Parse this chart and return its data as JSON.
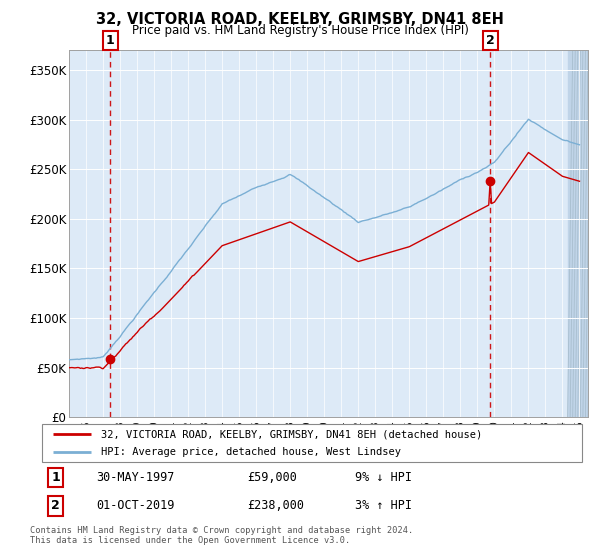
{
  "title": "32, VICTORIA ROAD, KEELBY, GRIMSBY, DN41 8EH",
  "subtitle": "Price paid vs. HM Land Registry's House Price Index (HPI)",
  "ylabel_vals": [
    "£0",
    "£50K",
    "£100K",
    "£150K",
    "£200K",
    "£250K",
    "£300K",
    "£350K"
  ],
  "yticks": [
    0,
    50000,
    100000,
    150000,
    200000,
    250000,
    300000,
    350000
  ],
  "ylim": [
    0,
    370000
  ],
  "xlim_start": 1995.0,
  "xlim_end": 2025.5,
  "purchase1_x": 1997.41,
  "purchase1_y": 59000,
  "purchase1_label": "1",
  "purchase1_date": "30-MAY-1997",
  "purchase1_price": "£59,000",
  "purchase1_hpi": "9% ↓ HPI",
  "purchase2_x": 2019.75,
  "purchase2_y": 238000,
  "purchase2_label": "2",
  "purchase2_date": "01-OCT-2019",
  "purchase2_price": "£238,000",
  "purchase2_hpi": "3% ↑ HPI",
  "legend_line1": "32, VICTORIA ROAD, KEELBY, GRIMSBY, DN41 8EH (detached house)",
  "legend_line2": "HPI: Average price, detached house, West Lindsey",
  "footer1": "Contains HM Land Registry data © Crown copyright and database right 2024.",
  "footer2": "This data is licensed under the Open Government Licence v3.0.",
  "hpi_color": "#7bafd4",
  "price_color": "#cc0000",
  "plot_bg": "#ddeaf7",
  "hatch_color": "#c0d4e8"
}
